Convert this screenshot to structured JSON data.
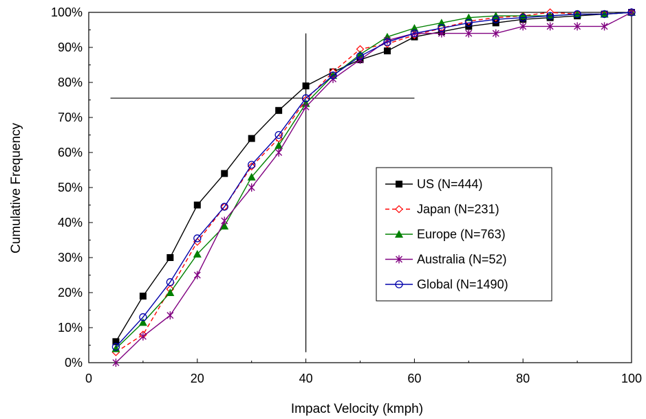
{
  "chart_data": {
    "type": "line",
    "title": "",
    "xlabel": "Impact Velocity (kmph)",
    "ylabel": "Cumulative Frequency",
    "xlim": [
      0,
      100
    ],
    "ylim": [
      0,
      100
    ],
    "x_ticks": [
      0,
      20,
      40,
      60,
      80,
      100
    ],
    "y_ticks": [
      0,
      10,
      20,
      30,
      40,
      50,
      60,
      70,
      80,
      90,
      100
    ],
    "y_tick_labels": [
      "0%",
      "10%",
      "20%",
      "30%",
      "40%",
      "50%",
      "60%",
      "70%",
      "80%",
      "90%",
      "100%"
    ],
    "y_unit": "percent",
    "grid": false,
    "legend_position": "center-right",
    "x": [
      5,
      10,
      15,
      20,
      25,
      30,
      35,
      40,
      45,
      50,
      55,
      60,
      65,
      70,
      75,
      80,
      85,
      90,
      95,
      100
    ],
    "series": [
      {
        "name": "US (N=444)",
        "color": "#000000",
        "marker": "filled-square",
        "line_style": "solid",
        "values": [
          6,
          19,
          30,
          45,
          54,
          64,
          72,
          79,
          83,
          86.5,
          89,
          93,
          94.5,
          96,
          97,
          98,
          98.5,
          99,
          99.5,
          100
        ]
      },
      {
        "name": "Japan (N=231)",
        "color": "#ff0000",
        "marker": "open-diamond",
        "line_style": "dashed",
        "values": [
          3,
          8,
          21,
          34.5,
          44.5,
          56,
          64,
          75,
          83,
          89.5,
          91,
          93.5,
          95.5,
          97.5,
          98.5,
          99,
          100,
          99.5,
          99.5,
          100
        ]
      },
      {
        "name": "Europe (N=763)",
        "color": "#008000",
        "marker": "filled-triangle",
        "line_style": "solid",
        "values": [
          4,
          11.5,
          20,
          31,
          39,
          53,
          62,
          74,
          82,
          88,
          93,
          95.5,
          97,
          98.5,
          99,
          99,
          99,
          99.5,
          99.5,
          100
        ]
      },
      {
        "name": "Australia (N=52)",
        "color": "#800080",
        "marker": "asterisk",
        "line_style": "solid",
        "values": [
          0,
          7.5,
          13.5,
          25,
          40.5,
          50,
          60,
          73,
          81,
          86.5,
          92,
          94,
          94,
          94,
          94,
          96,
          96,
          96,
          96,
          100
        ]
      },
      {
        "name": "Global (N=1490)",
        "color": "#0000aa",
        "marker": "open-circle",
        "line_style": "solid",
        "values": [
          4.5,
          13,
          23,
          35.5,
          44.5,
          56.5,
          65,
          75.5,
          82,
          87.5,
          91.5,
          94,
          95.5,
          97,
          98,
          98.5,
          99,
          99.5,
          99.5,
          100
        ]
      }
    ],
    "reference_lines": [
      {
        "orientation": "vertical",
        "x": 40,
        "y_range": [
          3,
          94
        ]
      },
      {
        "orientation": "horizontal",
        "y": 75.5,
        "x_range": [
          4,
          60
        ]
      }
    ]
  }
}
